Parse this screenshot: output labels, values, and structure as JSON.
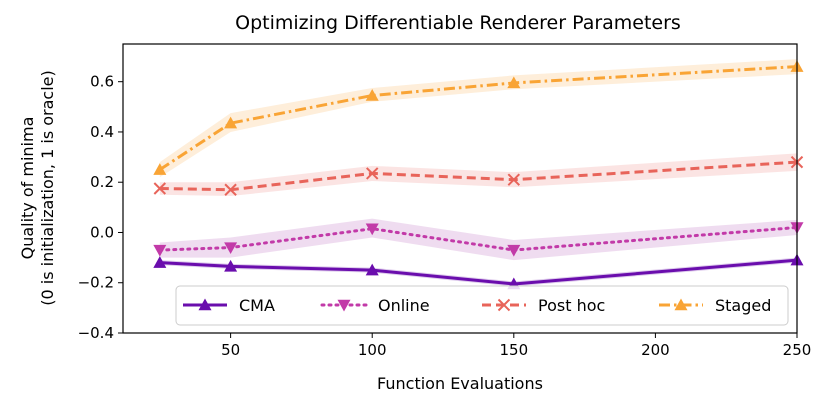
{
  "chart_data": {
    "type": "line",
    "title": "Optimizing Differentiable Renderer Parameters",
    "xlabel": "Function Evaluations",
    "ylabel": [
      "Quality of minima",
      "(0 is initialization, 1 is oracle)"
    ],
    "x": [
      25,
      50,
      100,
      150,
      250
    ],
    "xlim": [
      12,
      250
    ],
    "ylim": [
      -0.4,
      0.75
    ],
    "xticks": [
      50,
      100,
      150,
      200,
      250
    ],
    "yticks": [
      -0.4,
      -0.2,
      0.0,
      0.2,
      0.4,
      0.6
    ],
    "ytick_labels": [
      "−0.4",
      "−0.2",
      "0.0",
      "0.2",
      "0.4",
      "0.6"
    ],
    "legend_position": "bottom",
    "series": [
      {
        "name": "CMA",
        "values": [
          -0.12,
          -0.135,
          -0.15,
          -0.205,
          -0.11
        ],
        "lower": [
          -0.13,
          -0.145,
          -0.16,
          -0.215,
          -0.12
        ],
        "upper": [
          -0.11,
          -0.125,
          -0.14,
          -0.195,
          -0.1
        ],
        "color": "#6a0dad",
        "band_color": "#c8a8e0",
        "linestyle": "solid",
        "marker": "triangle-up"
      },
      {
        "name": "Online",
        "values": [
          -0.07,
          -0.06,
          0.015,
          -0.07,
          0.02
        ],
        "lower": [
          -0.1,
          -0.1,
          -0.02,
          -0.11,
          -0.01
        ],
        "upper": [
          -0.04,
          -0.02,
          0.055,
          -0.03,
          0.05
        ],
        "color": "#c23aa8",
        "band_color": "#e4c4e6",
        "linestyle": "dotted",
        "marker": "triangle-down"
      },
      {
        "name": "Post hoc",
        "values": [
          0.175,
          0.17,
          0.235,
          0.21,
          0.28
        ],
        "lower": [
          0.15,
          0.145,
          0.205,
          0.18,
          0.245
        ],
        "upper": [
          0.2,
          0.2,
          0.265,
          0.24,
          0.315
        ],
        "color": "#e8645a",
        "band_color": "#f8d2d0",
        "linestyle": "dashed",
        "marker": "x"
      },
      {
        "name": "Staged",
        "values": [
          0.25,
          0.435,
          0.545,
          0.595,
          0.66
        ],
        "lower": [
          0.22,
          0.4,
          0.52,
          0.57,
          0.63
        ],
        "upper": [
          0.28,
          0.475,
          0.575,
          0.625,
          0.69
        ],
        "color": "#f9a435",
        "band_color": "#fde3c2",
        "linestyle": "dashdot",
        "marker": "triangle-up"
      }
    ]
  }
}
